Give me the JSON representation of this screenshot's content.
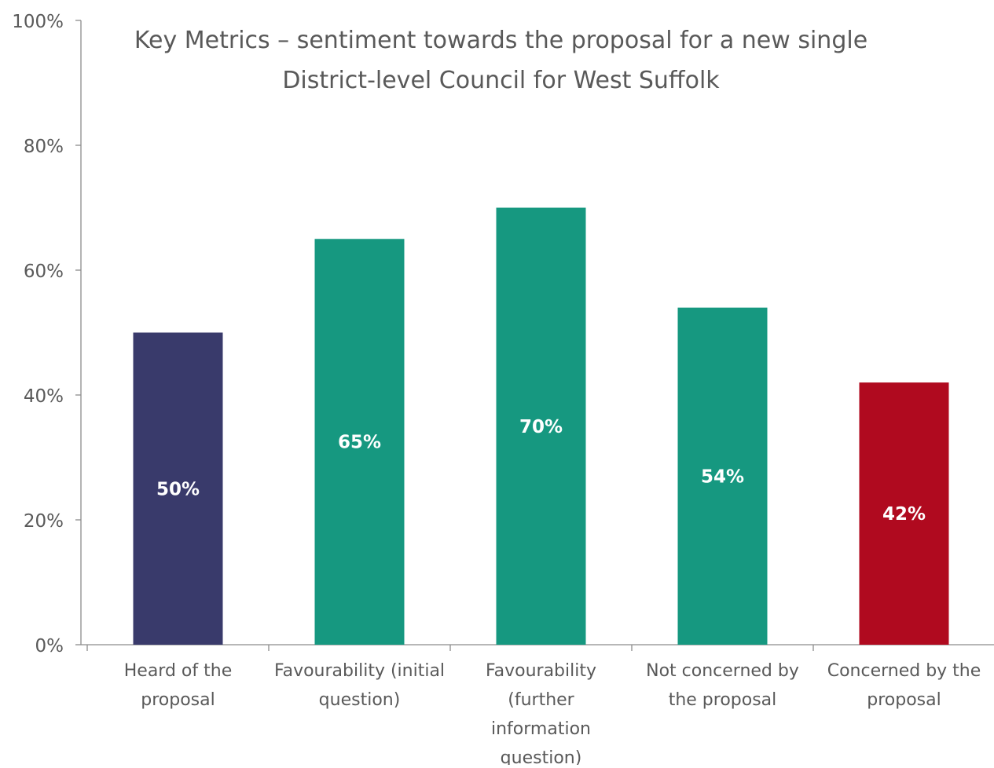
{
  "chart_data": {
    "type": "bar",
    "title": "Key Metrics – sentiment towards the proposal for a new single\nDistrict-level Council for West Suffolk",
    "categories": [
      [
        "Heard of the",
        "proposal"
      ],
      [
        "Favourability (initial",
        "question)"
      ],
      [
        "Favourability",
        "(further",
        "information",
        "question)"
      ],
      [
        "Not concerned by",
        "the proposal"
      ],
      [
        "Concerned by the",
        "proposal"
      ]
    ],
    "values": [
      50,
      65,
      70,
      54,
      42
    ],
    "data_labels": [
      "50%",
      "65%",
      "70%",
      "54%",
      "42%"
    ],
    "bar_colors": [
      "#393a6b",
      "#169880",
      "#169880",
      "#169880",
      "#b00a1f"
    ],
    "ylim": [
      0,
      100
    ],
    "yticks": [
      0,
      20,
      40,
      60,
      80,
      100
    ],
    "ytick_labels": [
      "0%",
      "20%",
      "40%",
      "60%",
      "80%",
      "100%"
    ],
    "xlabel": "",
    "ylabel": "",
    "grid": false,
    "legend": "none",
    "colors": {
      "axis": "#8c8c8c",
      "tick_text": "#595959",
      "data_label": "#ffffff"
    }
  }
}
